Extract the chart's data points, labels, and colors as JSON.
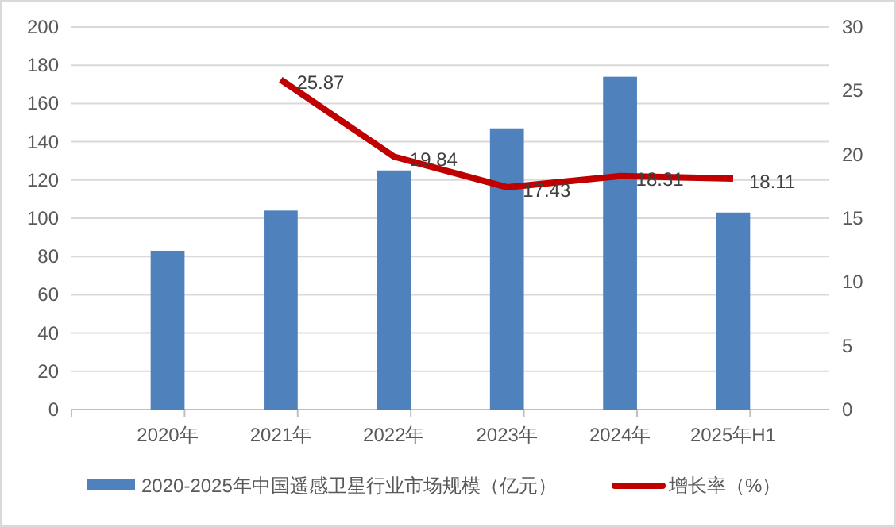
{
  "chart_data": {
    "type": "bar",
    "categories": [
      "2020年",
      "2021年",
      "2022年",
      "2023年",
      "2024年",
      "2025年H1"
    ],
    "series": [
      {
        "name": "2020-2025年中国遥感卫星行业市场规模（亿元）",
        "color": "#4f81bd",
        "values": [
          83,
          104,
          125,
          147,
          174,
          103
        ]
      },
      {
        "name": "增长率（%）",
        "type": "line",
        "axis": "y2",
        "color": "#c00000",
        "values": [
          null,
          25.87,
          19.84,
          17.43,
          18.31,
          18.11
        ],
        "value_labels": [
          null,
          "25.87",
          "19.84",
          "17.43",
          "18.31",
          "18.11"
        ]
      }
    ],
    "ylim": [
      0,
      200
    ],
    "yticks": [
      0,
      20,
      40,
      60,
      80,
      100,
      120,
      140,
      160,
      180,
      200
    ],
    "y2lim": [
      0,
      30
    ],
    "y2ticks": [
      0,
      5,
      10,
      15,
      20,
      25,
      30
    ],
    "grid": "y",
    "legend": "bottom",
    "marker": "none",
    "line_style": "solid"
  }
}
